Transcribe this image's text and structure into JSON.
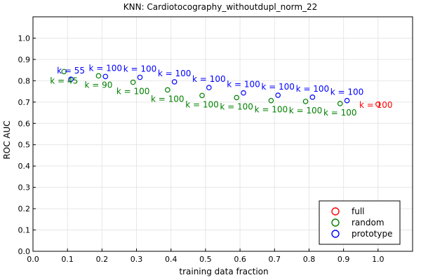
{
  "chart_data": {
    "type": "scatter",
    "title": "KNN: Cardiotocography_withoutdupl_norm_22",
    "xlabel": "training data fraction",
    "ylabel": "ROC AUC",
    "xlim": [
      0.0,
      1.1
    ],
    "ylim": [
      0.0,
      1.1
    ],
    "xticks": [
      0.0,
      0.1,
      0.2,
      0.3,
      0.4,
      0.5,
      0.6,
      0.7,
      0.8,
      0.9,
      1.0
    ],
    "xtick_labels": [
      "0.0",
      "0.1",
      "0.2",
      "0.3",
      "0.4",
      "0.5",
      "0.6",
      "0.7",
      "0.8",
      "0.9",
      "1.0"
    ],
    "yticks": [
      0.0,
      0.1,
      0.2,
      0.3,
      0.4,
      0.5,
      0.6,
      0.7,
      0.8,
      0.9,
      1.0
    ],
    "ytick_labels": [
      "0.0",
      "0.1",
      "0.2",
      "0.3",
      "0.4",
      "0.5",
      "0.6",
      "0.7",
      "0.8",
      "0.9",
      "1.0"
    ],
    "grid": true,
    "legend_position": "bottom-right",
    "series": [
      {
        "name": "full",
        "color": "#ff0000",
        "points": [
          {
            "x": 1.0,
            "y": 0.69,
            "label": "k = 100"
          }
        ]
      },
      {
        "name": "random",
        "color": "#008000",
        "points": [
          {
            "x": 0.09,
            "y": 0.843,
            "label": "k = 45"
          },
          {
            "x": 0.19,
            "y": 0.823,
            "label": "k = 90"
          },
          {
            "x": 0.29,
            "y": 0.793,
            "label": "k = 100"
          },
          {
            "x": 0.39,
            "y": 0.757,
            "label": "k = 100"
          },
          {
            "x": 0.49,
            "y": 0.731,
            "label": "k = 100"
          },
          {
            "x": 0.59,
            "y": 0.721,
            "label": "k = 100"
          },
          {
            "x": 0.69,
            "y": 0.707,
            "label": "k = 100"
          },
          {
            "x": 0.79,
            "y": 0.703,
            "label": "k = 100"
          },
          {
            "x": 0.89,
            "y": 0.693,
            "label": "k = 100"
          }
        ]
      },
      {
        "name": "prototype",
        "color": "#0000ff",
        "points": [
          {
            "x": 0.11,
            "y": 0.807,
            "label": "k = 55"
          },
          {
            "x": 0.21,
            "y": 0.82,
            "label": "k = 100"
          },
          {
            "x": 0.31,
            "y": 0.816,
            "label": "k = 100"
          },
          {
            "x": 0.41,
            "y": 0.795,
            "label": "k = 100"
          },
          {
            "x": 0.51,
            "y": 0.768,
            "label": "k = 100"
          },
          {
            "x": 0.61,
            "y": 0.743,
            "label": "k = 100"
          },
          {
            "x": 0.71,
            "y": 0.732,
            "label": "k = 100"
          },
          {
            "x": 0.81,
            "y": 0.723,
            "label": "k = 100"
          },
          {
            "x": 0.91,
            "y": 0.707,
            "label": "k = 100"
          }
        ]
      }
    ]
  }
}
